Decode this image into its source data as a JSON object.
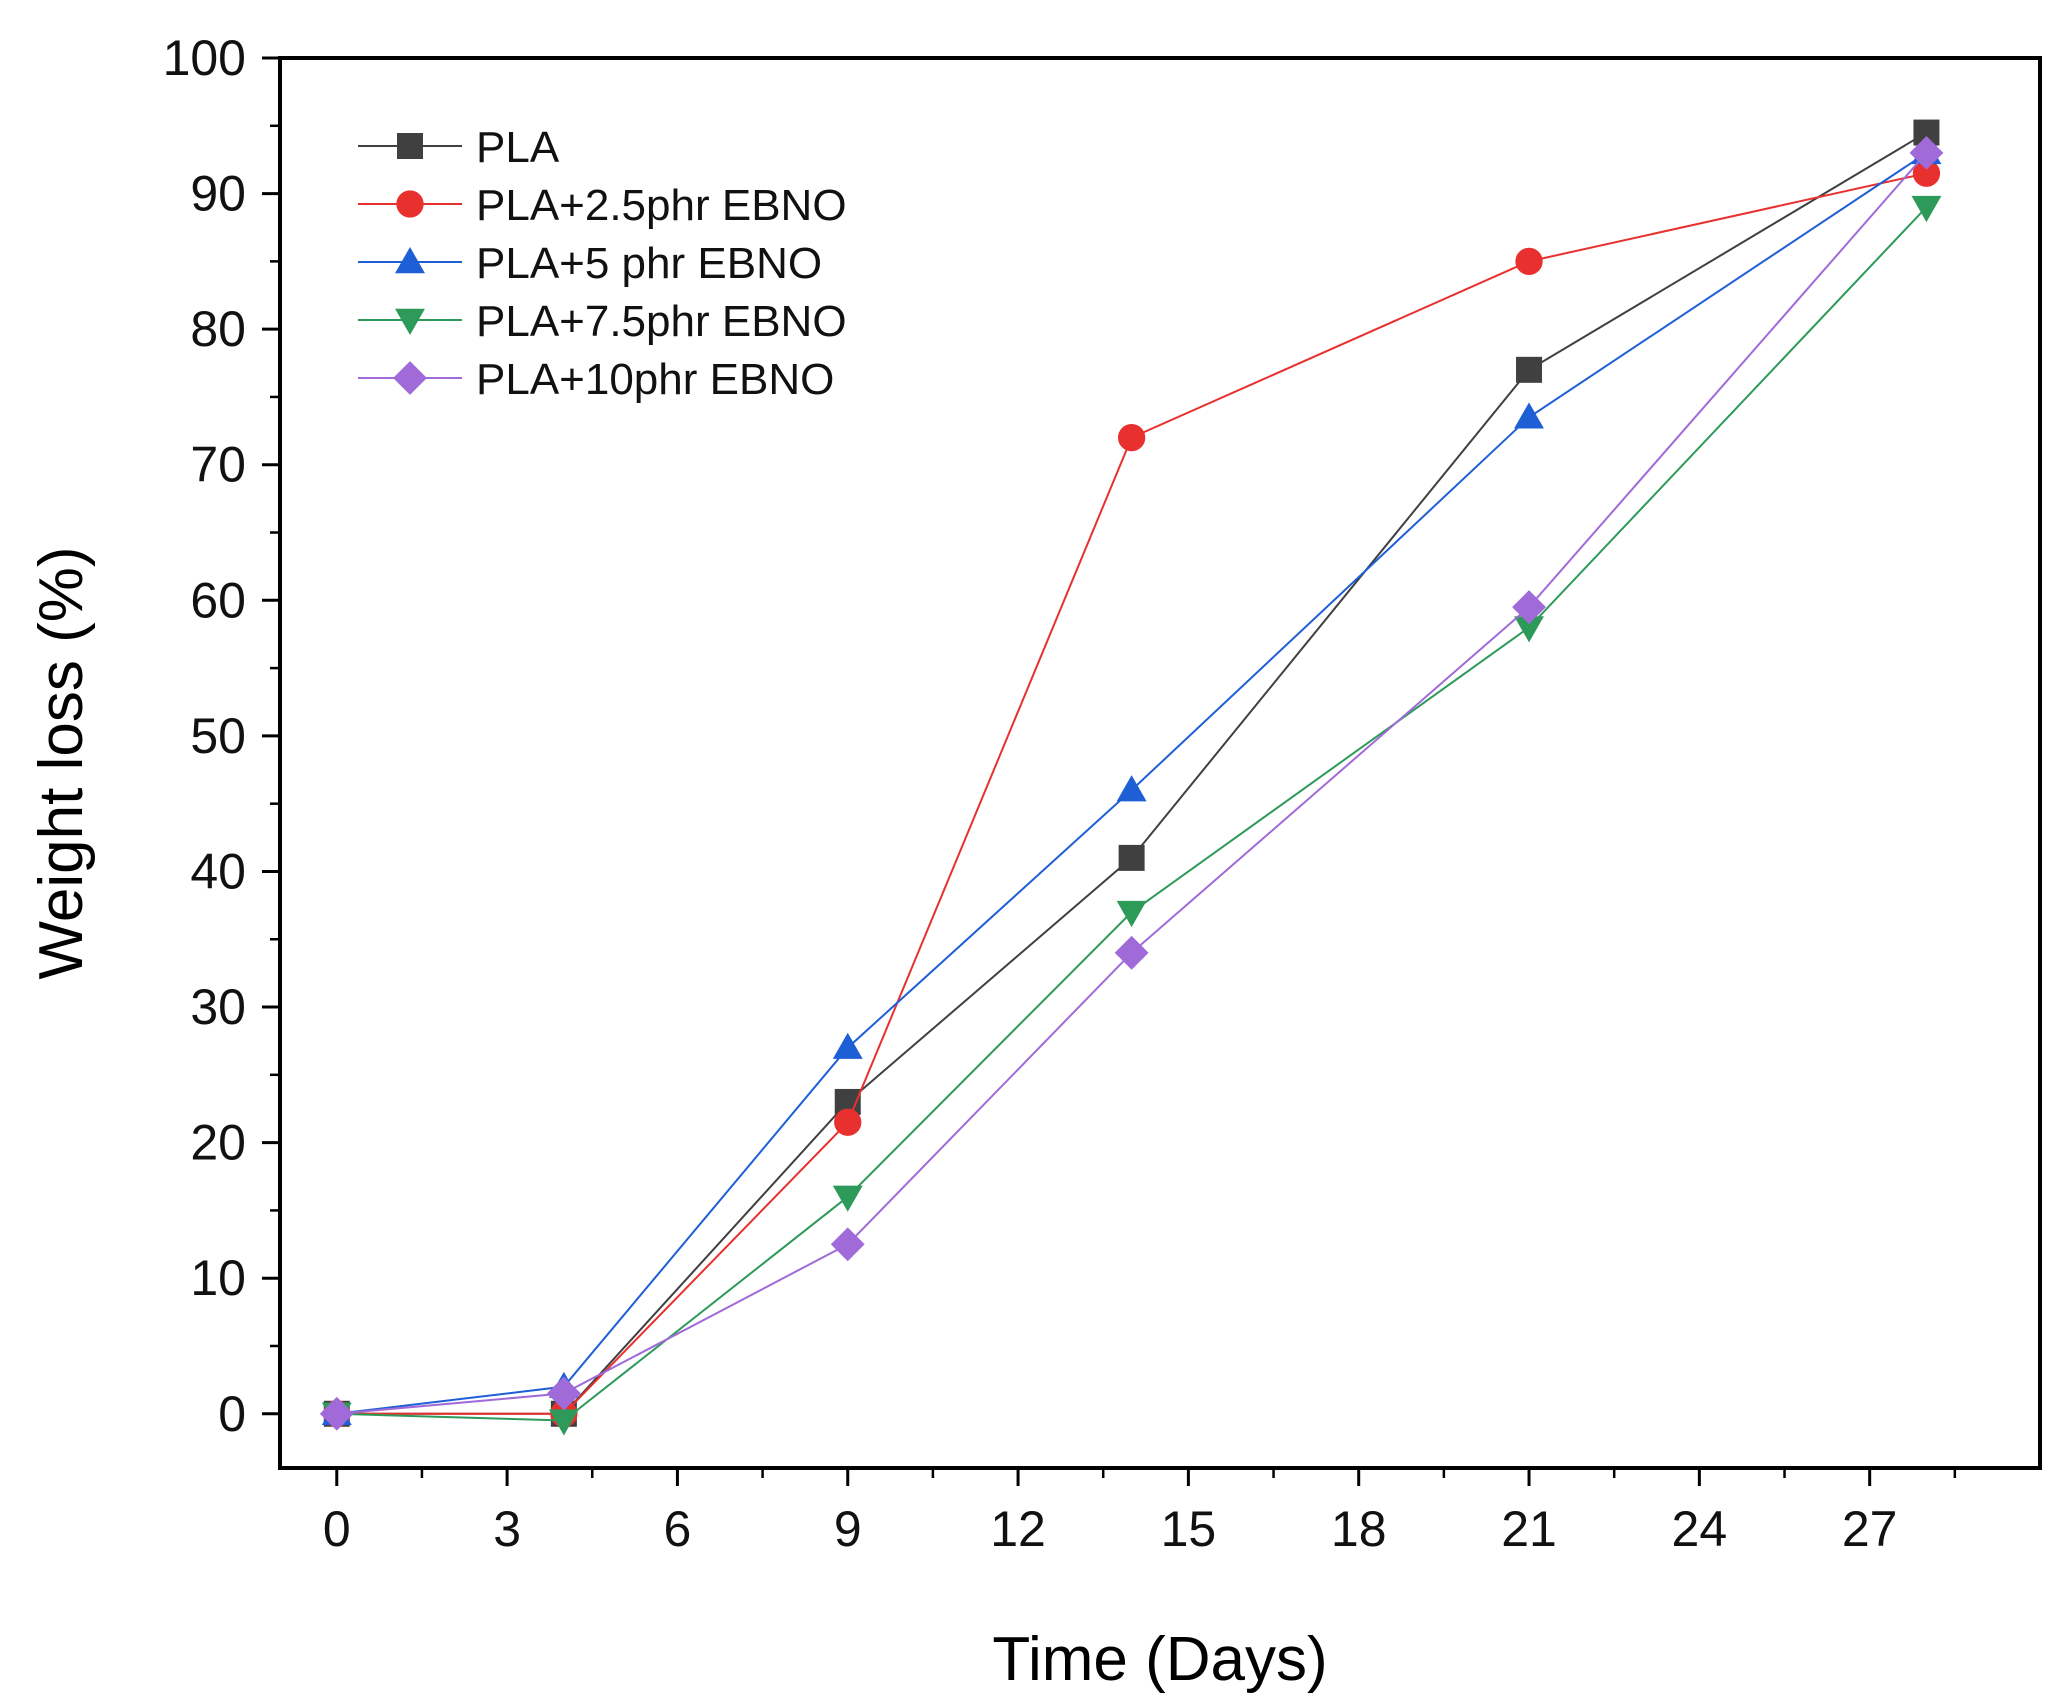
{
  "chart_data": {
    "type": "line",
    "title": "",
    "xlabel": "Time (Days)",
    "ylabel": "Weight loss (%)",
    "x": [
      0,
      4,
      9,
      14,
      21,
      28
    ],
    "xlim": [
      -1,
      30
    ],
    "ylim": [
      -4,
      100
    ],
    "xticks": [
      0,
      3,
      6,
      9,
      12,
      15,
      18,
      21,
      24,
      27
    ],
    "yticks": [
      0,
      10,
      20,
      30,
      40,
      50,
      60,
      70,
      80,
      90,
      100
    ],
    "grid": false,
    "legend_position": "top-left",
    "series": [
      {
        "name": "PLA",
        "color": "#404040",
        "marker": "square",
        "values": [
          0,
          0,
          23,
          41,
          77,
          94.5
        ]
      },
      {
        "name": "PLA+2.5phr EBNO",
        "color": "#e8302f",
        "marker": "circle",
        "values": [
          0,
          0,
          21.5,
          72,
          85,
          91.5
        ]
      },
      {
        "name": "PLA+5 phr EBNO",
        "color": "#1f5fd6",
        "marker": "triangle-up",
        "values": [
          0,
          2,
          27,
          46,
          73.5,
          93
        ]
      },
      {
        "name": "PLA+7.5phr EBNO",
        "color": "#2e9a5a",
        "marker": "triangle-down",
        "values": [
          0,
          -0.5,
          16,
          37,
          58,
          89
        ]
      },
      {
        "name": "PLA+10phr EBNO",
        "color": "#a06ad8",
        "marker": "diamond",
        "values": [
          0,
          1.5,
          12.5,
          34,
          59.5,
          93
        ]
      }
    ]
  }
}
